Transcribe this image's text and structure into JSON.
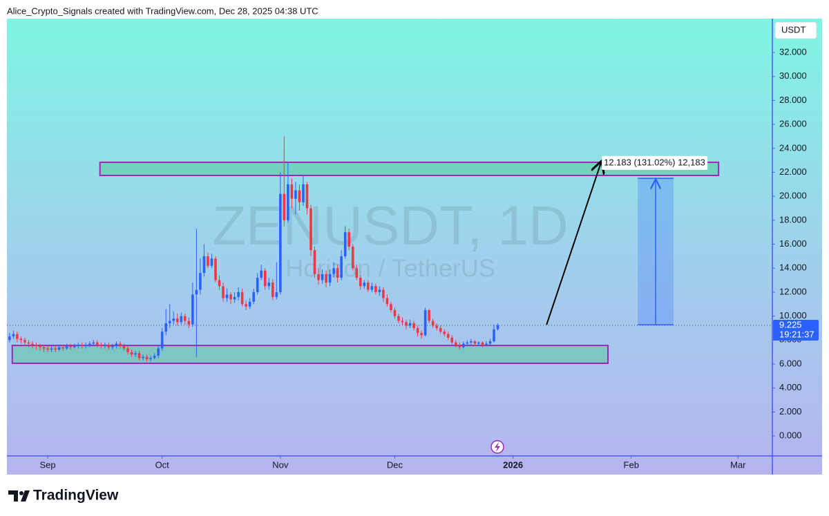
{
  "header": "Alice_Crypto_Signals created with TradingView.com, Dec 28, 2025 04:38 UTC",
  "footer": "TradingView",
  "chart_data": {
    "type": "candlestick",
    "title": "ZENUSDT, 1D",
    "subtitle": "Horizon / TetherUS",
    "currency": "USDT",
    "up_color": "#2962ff",
    "down_color": "#f23645",
    "open": [
      8.0,
      8.3,
      8.5,
      8.1,
      8.0,
      7.8,
      7.7,
      7.6,
      7.5,
      7.4,
      7.3,
      7.2,
      7.3,
      7.2,
      7.4,
      7.3,
      7.5,
      7.4,
      7.5,
      7.6,
      7.5,
      7.6,
      7.7,
      7.8,
      7.6,
      7.5,
      7.6,
      7.4,
      7.5,
      7.7,
      7.5,
      7.3,
      7.0,
      6.8,
      6.9,
      6.5,
      6.6,
      6.4,
      6.5,
      6.7,
      7.3,
      8.7,
      9.4,
      9.6,
      9.8,
      9.5,
      10.0,
      9.6,
      9.3,
      11.8,
      12.2,
      13.6,
      15.0,
      14.2,
      14.8,
      13.0,
      12.5,
      11.5,
      11.8,
      11.4,
      11.6,
      12.0,
      11.0,
      10.8,
      11.2,
      12.0,
      13.2,
      13.8,
      12.5,
      12.8,
      11.6,
      12.0,
      20.2,
      18.0,
      21.0,
      19.8,
      20.5,
      19.5,
      21.0,
      19.0,
      15.5,
      13.5,
      13.0,
      13.5,
      12.8,
      13.5,
      14.0,
      13.2,
      15.0,
      17.0,
      15.8,
      14.0,
      13.2,
      12.5,
      12.8,
      12.2,
      12.5,
      12.0,
      12.2,
      11.5,
      11.0,
      10.5,
      10.0,
      9.6,
      9.5,
      9.2,
      9.4,
      9.0,
      8.6,
      8.4,
      10.5,
      9.6,
      9.2,
      9.0,
      8.7,
      8.5,
      8.2,
      7.8,
      7.6,
      7.4,
      7.7,
      7.8,
      7.9,
      7.7,
      7.8,
      7.6,
      7.7,
      7.9,
      8.9
    ],
    "high": [
      8.6,
      8.8,
      8.7,
      8.3,
      8.2,
      8.0,
      7.9,
      7.8,
      7.7,
      7.6,
      7.5,
      7.5,
      7.5,
      7.6,
      7.6,
      7.7,
      7.7,
      7.7,
      7.8,
      7.8,
      7.8,
      7.9,
      8.0,
      8.0,
      7.8,
      7.8,
      7.8,
      7.7,
      7.9,
      7.9,
      7.7,
      7.5,
      7.2,
      7.1,
      7.1,
      6.8,
      6.8,
      6.7,
      6.9,
      7.6,
      9.0,
      10.6,
      11.0,
      10.4,
      10.2,
      10.3,
      10.2,
      9.9,
      12.8,
      17.3,
      14.8,
      16.0,
      15.3,
      15.2,
      15.0,
      13.4,
      12.8,
      12.3,
      12.0,
      12.0,
      12.4,
      12.3,
      11.3,
      11.5,
      12.3,
      13.6,
      14.3,
      14.0,
      13.2,
      13.1,
      14.5,
      22.0,
      25.0,
      22.8,
      21.5,
      21.2,
      21.0,
      21.8,
      21.2,
      19.3,
      15.8,
      14.0,
      13.9,
      13.8,
      13.9,
      14.5,
      14.3,
      15.5,
      17.5,
      17.3,
      16.0,
      14.3,
      13.4,
      13.0,
      13.0,
      12.8,
      12.7,
      12.5,
      12.4,
      11.8,
      11.2,
      10.7,
      10.2,
      9.9,
      9.7,
      9.7,
      9.6,
      9.2,
      8.8,
      10.7,
      10.6,
      9.8,
      9.4,
      9.2,
      8.9,
      8.7,
      8.4,
      8.0,
      7.8,
      7.9,
      8.0,
      8.1,
      8.0,
      7.9,
      7.9,
      7.9,
      8.1,
      9.3,
      9.4
    ],
    "low": [
      7.8,
      8.1,
      7.8,
      7.7,
      7.5,
      7.4,
      7.3,
      7.2,
      7.1,
      7.0,
      7.0,
      7.0,
      7.0,
      7.1,
      7.1,
      7.2,
      7.2,
      7.3,
      7.3,
      7.3,
      7.3,
      7.4,
      7.5,
      7.4,
      7.3,
      7.3,
      7.2,
      7.2,
      7.3,
      7.3,
      7.1,
      6.8,
      6.6,
      6.6,
      6.3,
      6.3,
      6.2,
      6.2,
      6.4,
      6.5,
      7.1,
      8.4,
      9.0,
      9.3,
      9.2,
      9.3,
      9.3,
      9.0,
      9.1,
      6.6,
      11.8,
      13.3,
      14.0,
      14.0,
      12.8,
      12.2,
      11.2,
      11.2,
      11.0,
      11.1,
      11.3,
      10.8,
      10.5,
      10.6,
      11.0,
      11.8,
      13.0,
      12.2,
      12.2,
      11.3,
      11.4,
      11.8,
      17.5,
      17.8,
      19.0,
      18.5,
      18.8,
      19.2,
      18.5,
      15.0,
      13.2,
      12.6,
      12.7,
      12.4,
      12.5,
      13.2,
      12.8,
      13.0,
      14.8,
      15.5,
      13.8,
      13.0,
      12.2,
      12.3,
      12.0,
      12.0,
      11.8,
      11.7,
      11.2,
      10.8,
      10.3,
      9.8,
      9.4,
      9.2,
      8.9,
      9.0,
      8.8,
      8.3,
      8.1,
      8.3,
      9.4,
      9.0,
      8.8,
      8.5,
      8.3,
      8.0,
      7.6,
      7.4,
      7.2,
      7.3,
      7.5,
      7.6,
      7.5,
      7.5,
      7.4,
      7.5,
      7.6,
      7.8,
      8.8
    ],
    "close": [
      8.3,
      8.5,
      8.1,
      8.0,
      7.8,
      7.7,
      7.6,
      7.5,
      7.4,
      7.3,
      7.2,
      7.3,
      7.2,
      7.4,
      7.3,
      7.5,
      7.4,
      7.5,
      7.6,
      7.5,
      7.6,
      7.7,
      7.8,
      7.6,
      7.5,
      7.6,
      7.4,
      7.5,
      7.7,
      7.5,
      7.3,
      7.0,
      6.8,
      6.9,
      6.5,
      6.6,
      6.4,
      6.5,
      6.7,
      7.3,
      8.7,
      9.4,
      9.6,
      9.8,
      9.5,
      10.0,
      9.6,
      9.3,
      11.8,
      12.2,
      13.6,
      15.0,
      14.2,
      14.8,
      13.0,
      12.5,
      11.5,
      11.8,
      11.4,
      11.6,
      12.0,
      11.0,
      10.8,
      11.2,
      12.0,
      13.2,
      13.8,
      12.5,
      12.8,
      11.6,
      12.0,
      20.2,
      18.0,
      21.0,
      19.8,
      20.5,
      19.5,
      21.0,
      19.0,
      15.5,
      13.5,
      13.0,
      13.5,
      12.8,
      13.5,
      14.0,
      13.2,
      15.0,
      17.0,
      15.8,
      14.0,
      13.2,
      12.5,
      12.8,
      12.2,
      12.5,
      12.0,
      12.2,
      11.5,
      11.0,
      10.5,
      10.0,
      9.6,
      9.5,
      9.2,
      9.4,
      9.0,
      8.6,
      8.4,
      10.5,
      9.6,
      9.2,
      9.0,
      8.7,
      8.5,
      8.2,
      7.8,
      7.6,
      7.4,
      7.7,
      7.8,
      7.9,
      7.7,
      7.8,
      7.6,
      7.7,
      7.9,
      8.9,
      9.225
    ],
    "xlim": [
      -0.7,
      200
    ],
    "xticks": [
      {
        "value": 10,
        "label": "Sep"
      },
      {
        "value": 40,
        "label": "Oct"
      },
      {
        "value": 71,
        "label": "Nov"
      },
      {
        "value": 101,
        "label": "Dec"
      },
      {
        "value": 132,
        "label": "2026",
        "bold": true
      },
      {
        "value": 163,
        "label": "Feb"
      },
      {
        "value": 191,
        "label": "Mar"
      }
    ],
    "ylim": [
      -1.67,
      34.83
    ],
    "yticks": [
      {
        "value": 0,
        "label": "0.000"
      },
      {
        "value": 2,
        "label": "2.000"
      },
      {
        "value": 4,
        "label": "4.000"
      },
      {
        "value": 6,
        "label": "6.000"
      },
      {
        "value": 8,
        "label": "8.000"
      },
      {
        "value": 10,
        "label": "10.000"
      },
      {
        "value": 12,
        "label": "12.000"
      },
      {
        "value": 14,
        "label": "14.000"
      },
      {
        "value": 16,
        "label": "16.000"
      },
      {
        "value": 18,
        "label": "18.000"
      },
      {
        "value": 20,
        "label": "20.000"
      },
      {
        "value": 22,
        "label": "22.000"
      },
      {
        "value": 24,
        "label": "24.000"
      },
      {
        "value": 26,
        "label": "26.000"
      },
      {
        "value": 28,
        "label": "28.000"
      },
      {
        "value": 30,
        "label": "30.000"
      },
      {
        "value": 32,
        "label": "32.000"
      }
    ],
    "last_price": 9.225,
    "countdown": "19:21:37",
    "zones": [
      {
        "from": 23.7,
        "to": 185.9,
        "bottom": 21.74,
        "top": 22.84
      },
      {
        "from": 0.7,
        "to": 156.9,
        "bottom": 6.06,
        "top": 7.55
      }
    ],
    "arrow": {
      "x": [
        140.8,
        155.1
      ],
      "y": [
        9.28,
        22.84
      ]
    },
    "measure": {
      "from": 164.7,
      "to": 174.1,
      "low": 9.28,
      "high": 21.5,
      "label": "12.183 (131.02%) 12,183"
    }
  }
}
